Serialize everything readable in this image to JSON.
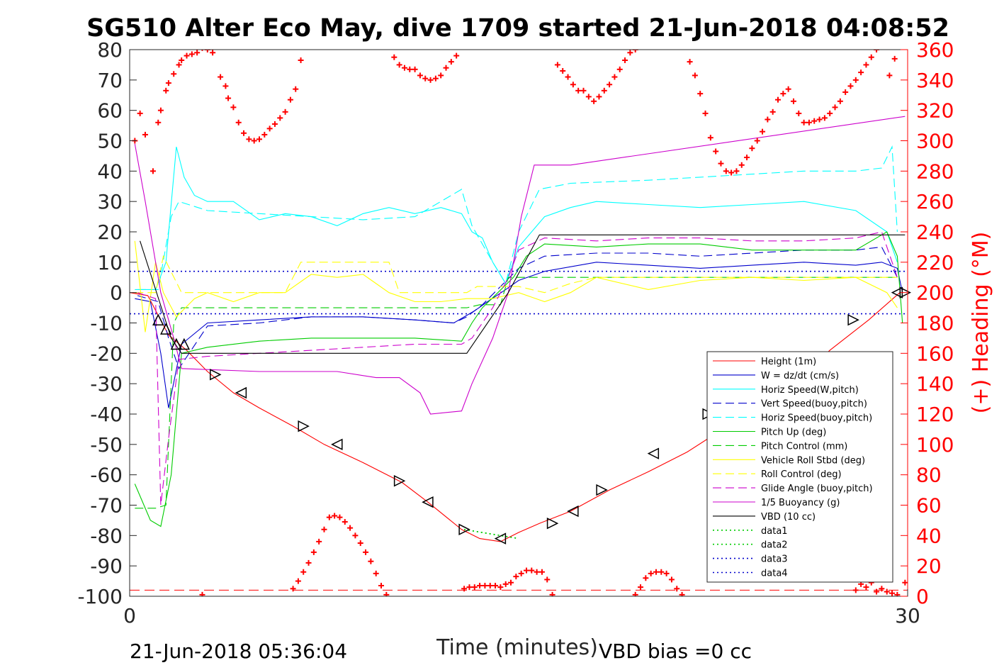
{
  "title": "SG510 Alter Eco May, dive 1709 started 21-Jun-2018 04:08:52",
  "footer_left": "21-Jun-2018 05:36:04",
  "footer_right": "VBD bias =0 cc",
  "chart_data": {
    "type": "line",
    "title": "SG510 Alter Eco May, dive 1709 started 21-Jun-2018 04:08:52",
    "xlabel": "Time (minutes)",
    "ylabel": "",
    "ylabel_right": "(+) Heading (°M)",
    "xlim": [
      0,
      30
    ],
    "ylim": [
      -100,
      80
    ],
    "ylim_right": [
      0,
      360
    ],
    "xticks": [
      "0",
      "30"
    ],
    "yticks": [
      "80",
      "70",
      "60",
      "50",
      "40",
      "30",
      "20",
      "10",
      "0",
      "-10",
      "-20",
      "-30",
      "-40",
      "-50",
      "-60",
      "-70",
      "-80",
      "-90",
      "-100"
    ],
    "yticks_right": [
      "360",
      "340",
      "320",
      "300",
      "280",
      "260",
      "240",
      "220",
      "200",
      "180",
      "160",
      "140",
      "120",
      "100",
      "80",
      "60",
      "40",
      "20",
      "0"
    ],
    "grid": false,
    "legend_position": "bottom-right",
    "series": [
      {
        "name": "Height (1m)",
        "color": "#ff0000",
        "style": "solid",
        "x": [
          0,
          0.7,
          1.5,
          2.2,
          3,
          4,
          5,
          6.3,
          7.5,
          9,
          10.5,
          11.5,
          12.8,
          13.5,
          14.3,
          15,
          15.8,
          17,
          18.5,
          20,
          21.5,
          22.5,
          24,
          25.5,
          27,
          28.5,
          29.7
        ],
        "y": [
          0,
          -1,
          -14,
          -19,
          -26,
          -33,
          -38,
          -44,
          -50,
          -56,
          -62.5,
          -69,
          -78,
          -81,
          -82,
          -79,
          -76,
          -72,
          -65,
          -59,
          -52.5,
          -47,
          -38,
          -31,
          -19,
          -9,
          0
        ]
      },
      {
        "name": "W = dz/dt (cm/s)",
        "color": "#0000cc",
        "style": "solid",
        "x": [
          0.2,
          0.8,
          1.2,
          1.5,
          2.0,
          3,
          5,
          7,
          9,
          11,
          12.5,
          13.3,
          13.8,
          14.5,
          15,
          16,
          18,
          20,
          22,
          24,
          26,
          28,
          29,
          29.6,
          29.8
        ],
        "y": [
          -2,
          -3,
          -20,
          -38,
          -17,
          -10,
          -9,
          -8,
          -8,
          -9,
          -10,
          -6,
          -3,
          1,
          4,
          7,
          10,
          9,
          8,
          9,
          10,
          9,
          10,
          8,
          0
        ]
      },
      {
        "name": "Horiz Speed(W,pitch)",
        "color": "#00ffff",
        "style": "solid",
        "x": [
          0.2,
          1.0,
          1.4,
          1.8,
          2.1,
          2.5,
          3,
          4,
          5,
          6,
          7,
          8,
          9,
          10,
          11,
          12,
          12.8,
          13.2,
          13.6,
          14.0,
          14.5,
          15,
          16,
          17,
          18,
          20,
          22,
          24,
          26,
          28,
          29.2,
          29.6
        ],
        "y": [
          1,
          1,
          10,
          48,
          38,
          32,
          30,
          30,
          24,
          26,
          25,
          22,
          26,
          28,
          26,
          28,
          26,
          20,
          18,
          10,
          3,
          15,
          25,
          28,
          30,
          29,
          28,
          29,
          30,
          27,
          20,
          10
        ]
      },
      {
        "name": "Vert Speed(buoy,pitch)",
        "color": "#0000cc",
        "style": "dashed",
        "x": [
          0.3,
          1.1,
          1.5,
          1.9,
          3,
          5,
          7,
          9,
          11,
          12.5,
          13,
          13.6,
          14.3,
          15,
          16,
          18,
          20,
          22,
          24,
          26,
          28,
          29,
          29.6
        ],
        "y": [
          -1,
          -3,
          -15,
          -25,
          -11,
          -10,
          -8,
          -8,
          -9,
          -10,
          -8,
          -4,
          2,
          8,
          12,
          13,
          13,
          12,
          13,
          14,
          14,
          15,
          5
        ]
      },
      {
        "name": "Horiz Speed(buoy,pitch)",
        "color": "#00ffff",
        "style": "dashed",
        "x": [
          0.3,
          1.1,
          1.6,
          1.9,
          3,
          5,
          7,
          9,
          11,
          12,
          12.8,
          13.2,
          14,
          14.5,
          15,
          15.8,
          17,
          20,
          22,
          24,
          26,
          28,
          29,
          29.4,
          29.6
        ],
        "y": [
          1,
          1,
          25,
          30,
          27,
          26,
          25,
          24,
          25,
          30,
          34,
          22,
          10,
          3,
          20,
          34,
          36,
          37,
          38,
          39,
          40,
          40,
          41,
          48,
          20
        ]
      },
      {
        "name": "Pitch Up (deg)",
        "color": "#00cc00",
        "style": "solid",
        "x": [
          0.2,
          0.8,
          1.2,
          1.6,
          2.0,
          3,
          5,
          7,
          9,
          11,
          12.8,
          13.2,
          13.6,
          14.2,
          14.8,
          15.3,
          16,
          18,
          20,
          22,
          24,
          26,
          28,
          29.2,
          29.6,
          29.8
        ],
        "y": [
          -63,
          -75,
          -77,
          -60,
          -20,
          -18,
          -16,
          -15,
          -15,
          -15,
          -16,
          -10,
          -5,
          0,
          5,
          12,
          16,
          15,
          16,
          16,
          14,
          14,
          14,
          20,
          12,
          -10
        ]
      },
      {
        "name": "Pitch Control (mm)",
        "color": "#00cc00",
        "style": "dashed",
        "x": [
          0.2,
          1.0,
          1.4,
          1.7,
          2.0,
          13.0,
          13.5,
          14.3,
          14.6,
          29.6
        ],
        "y": [
          -71,
          -71,
          -70,
          -10,
          -5,
          -5,
          -4,
          -4,
          5,
          5
        ]
      },
      {
        "name": "Vehicle Roll Stbd (deg)",
        "color": "#ffff00",
        "style": "solid",
        "x": [
          0.2,
          0.6,
          1.0,
          1.3,
          1.8,
          2.5,
          3,
          4,
          5,
          6,
          7,
          8,
          9,
          10,
          11,
          12,
          13,
          14,
          15,
          16,
          17,
          18,
          20,
          22,
          24,
          26,
          28,
          29.2,
          29.6
        ],
        "y": [
          17,
          -13,
          10,
          0,
          -8,
          -2,
          0,
          -3,
          0,
          0,
          6,
          5,
          6,
          0,
          -3,
          -3,
          -2,
          -2,
          0,
          -3,
          0,
          5,
          1,
          4,
          5,
          4,
          5,
          0,
          -5
        ]
      },
      {
        "name": "Roll Control (deg)",
        "color": "#ffff00",
        "style": "dashed",
        "x": [
          0.2,
          1.0,
          1.3,
          2.0,
          4,
          6,
          6.6,
          10,
          10.4,
          13,
          13.4,
          15,
          16,
          17,
          18,
          20,
          22,
          24,
          26,
          28,
          29.6
        ],
        "y": [
          0,
          0,
          12,
          0,
          0,
          0,
          10,
          10,
          0,
          0,
          2,
          2,
          0,
          3,
          5,
          5,
          5,
          5,
          5,
          5,
          5
        ]
      },
      {
        "name": "Glide Angle (buoy,pitch)",
        "color": "#cc00cc",
        "style": "dashed",
        "x": [
          0.3,
          1.0,
          1.2,
          1.5,
          1.9,
          3,
          5,
          7,
          9,
          11,
          12.8,
          13.2,
          14,
          14.6,
          15,
          16,
          18,
          20,
          22,
          24,
          26,
          28,
          29,
          29.6
        ],
        "y": [
          0,
          -2,
          -70,
          -48,
          -22,
          -21,
          -20,
          -19,
          -18,
          -17,
          -17,
          -15,
          -5,
          5,
          14,
          18,
          17,
          18,
          18,
          17,
          17,
          18,
          20,
          5
        ]
      },
      {
        "name": "1/5 Buoyancy (g)",
        "color": "#cc00cc",
        "style": "solid",
        "x": [
          0.2,
          0.6,
          1.2,
          1.7,
          2.0,
          5,
          8,
          9.5,
          10.4,
          11.2,
          11.6,
          12.8,
          13.2,
          14.0,
          14.6,
          15.1,
          15.6,
          17,
          29.9
        ],
        "y": [
          49,
          30,
          0,
          -15,
          -25,
          -26,
          -26,
          -28,
          -28,
          -33,
          -40,
          -39,
          -30,
          -15,
          0,
          25,
          42,
          42,
          58
        ]
      },
      {
        "name": "VBD (10 cc)",
        "color": "#000000",
        "style": "solid",
        "x": [
          0.4,
          1.6,
          2.0,
          13.0,
          14.6,
          15.8,
          16.3,
          29.9
        ],
        "y": [
          17,
          -15,
          -20,
          -20,
          0,
          19,
          19,
          19
        ]
      },
      {
        "name": "data1",
        "color": "#00cc00",
        "style": "dotted",
        "x": [
          12.9,
          15.0
        ],
        "y": [
          -78,
          -81
        ]
      },
      {
        "name": "data2",
        "color": "#00cc00",
        "style": "dotted",
        "x": [
          12.9,
          15.0
        ],
        "y": [
          -78,
          -81
        ]
      },
      {
        "name": "data3",
        "color": "#0000cc",
        "style": "dotted",
        "x": [
          0,
          30
        ],
        "y": [
          7,
          7
        ]
      },
      {
        "name": "data4",
        "color": "#0000cc",
        "style": "dotted",
        "x": [
          0,
          30
        ],
        "y": [
          -7,
          -7
        ]
      }
    ],
    "bottom_dashed_line": {
      "color": "#ff0000",
      "y": -98
    },
    "heading": {
      "color": "#ff0000",
      "marker": "+",
      "axis": "right",
      "x": [
        0.2,
        0.4,
        0.6,
        0.9,
        1.1,
        1.2,
        1.4,
        1.5,
        1.7,
        1.9,
        2.0,
        2.2,
        2.4,
        2.6,
        2.8,
        3.0,
        3.2,
        3.5,
        3.7,
        3.8,
        4.0,
        4.2,
        4.4,
        4.6,
        4.8,
        5.0,
        5.2,
        5.4,
        5.6,
        5.8,
        6.0,
        6.2,
        6.4,
        6.6,
        10.2,
        10.4,
        10.6,
        10.8,
        11.0,
        11.2,
        11.4,
        11.6,
        11.8,
        12.0,
        12.2,
        12.4,
        12.6,
        16.5,
        16.7,
        16.9,
        17.1,
        17.3,
        17.5,
        17.7,
        17.9,
        18.1,
        18.3,
        18.5,
        18.7,
        18.9,
        19.1,
        19.3,
        19.5,
        21.6,
        21.8,
        22.0,
        22.2,
        22.4,
        22.6,
        22.8,
        23.0,
        23.2,
        23.4,
        23.6,
        23.8,
        24.0,
        24.2,
        24.4,
        24.6,
        24.8,
        25.0,
        25.2,
        25.4,
        25.6,
        25.8,
        26.0,
        26.2,
        26.4,
        26.6,
        26.8,
        27.0,
        27.2,
        27.4,
        27.6,
        27.8,
        28.0,
        28.2,
        28.4,
        28.6,
        28.8,
        29.0,
        29.3,
        29.5
      ],
      "y": [
        300,
        318,
        304,
        280,
        312,
        320,
        333,
        338,
        344,
        350,
        353,
        356,
        357,
        358,
        361,
        360,
        358,
        342,
        336,
        328,
        322,
        312,
        305,
        301,
        300,
        301,
        304,
        308,
        311,
        315,
        319,
        327,
        334,
        353,
        355,
        350,
        348,
        347,
        347,
        343,
        341,
        340,
        341,
        343,
        348,
        352,
        356,
        350,
        346,
        342,
        337,
        333,
        333,
        329,
        326,
        329,
        333,
        337,
        342,
        347,
        353,
        358,
        360,
        352,
        343,
        331,
        318,
        302,
        293,
        285,
        280,
        279,
        280,
        284,
        289,
        295,
        300,
        306,
        314,
        319,
        327,
        331,
        334,
        326,
        318,
        312,
        312,
        313,
        314,
        315,
        318,
        322,
        326,
        332,
        336,
        340,
        345,
        350,
        355,
        360,
        363,
        343,
        354
      ]
    },
    "heading_bottom": {
      "color": "#ff0000",
      "marker": "+",
      "axis": "right",
      "x": [
        2.8,
        6.3,
        6.5,
        6.7,
        6.9,
        7.1,
        7.3,
        7.5,
        7.7,
        7.9,
        8.1,
        8.3,
        8.5,
        8.7,
        8.9,
        9.1,
        9.3,
        9.5,
        9.7,
        9.9,
        12.9,
        13.1,
        13.3,
        13.5,
        13.7,
        13.9,
        14.1,
        14.3,
        14.5,
        14.7,
        14.9,
        15.1,
        15.3,
        15.5,
        15.7,
        15.9,
        16.1,
        16.3,
        19.5,
        19.7,
        19.9,
        20.1,
        20.3,
        20.5,
        20.7,
        20.9,
        21.1,
        21.3,
        28.0,
        28.2,
        28.4,
        28.6,
        28.8,
        29.0,
        29.2,
        29.4,
        29.6,
        29.9
      ],
      "y": [
        1,
        5,
        10,
        16,
        22,
        29,
        36,
        44,
        52,
        53,
        52,
        49,
        45,
        40,
        35,
        29,
        23,
        15,
        7,
        1,
        5,
        6,
        6,
        7,
        7,
        7,
        7,
        6,
        8,
        9,
        13,
        15,
        17,
        17,
        16,
        16,
        11,
        1,
        1,
        6,
        12,
        15,
        16,
        16,
        15,
        11,
        5,
        1,
        4,
        8,
        6,
        9,
        3,
        5,
        3,
        2,
        1,
        9
      ]
    },
    "markers_left": {
      "x": [
        1.1,
        1.4,
        1.8,
        2.1
      ],
      "y": [
        -9,
        -12,
        -17,
        -17
      ]
    },
    "markers_right": {
      "x": [
        3.3,
        4.3,
        6.7,
        8.0,
        10.4,
        11.5,
        12.9,
        14.3,
        16.3,
        17.1,
        18.2,
        20.2,
        22.3,
        23.2,
        27.9,
        29.6,
        29.9
      ],
      "y": [
        -27,
        -33,
        -44,
        -50,
        -62,
        -69,
        -78,
        -81,
        -76,
        -72,
        -65,
        -53,
        -40,
        -35,
        -9,
        0,
        0
      ]
    }
  }
}
